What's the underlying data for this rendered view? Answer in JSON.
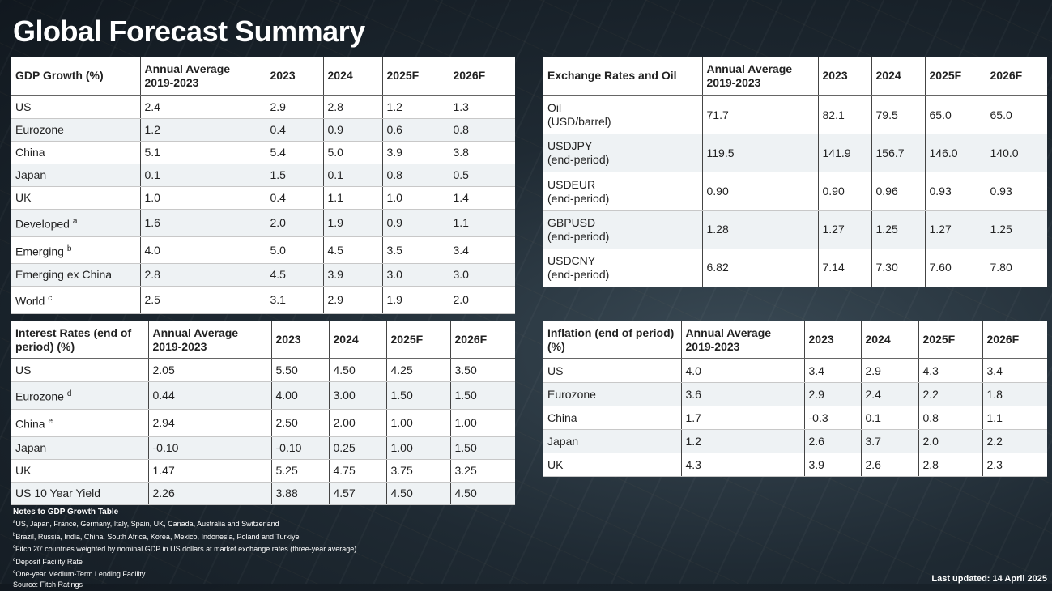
{
  "title": "Global Forecast Summary",
  "gdp": {
    "headers": [
      "GDP Growth (%)",
      "Annual Average 2019-2023",
      "2023",
      "2024",
      "2025F",
      "2026F"
    ],
    "rows": [
      {
        "label": "US",
        "sup": "",
        "values": [
          "2.4",
          "2.9",
          "2.8",
          "1.2",
          "1.3"
        ]
      },
      {
        "label": "Eurozone",
        "sup": "",
        "values": [
          "1.2",
          "0.4",
          "0.9",
          "0.6",
          "0.8"
        ]
      },
      {
        "label": "China",
        "sup": "",
        "values": [
          "5.1",
          "5.4",
          "5.0",
          "3.9",
          "3.8"
        ]
      },
      {
        "label": "Japan",
        "sup": "",
        "values": [
          "0.1",
          "1.5",
          "0.1",
          "0.8",
          "0.5"
        ]
      },
      {
        "label": "UK",
        "sup": "",
        "values": [
          "1.0",
          "0.4",
          "1.1",
          "1.0",
          "1.4"
        ]
      },
      {
        "label": "Developed",
        "sup": "a",
        "values": [
          "1.6",
          "2.0",
          "1.9",
          "0.9",
          "1.1"
        ]
      },
      {
        "label": "Emerging",
        "sup": "b",
        "values": [
          "4.0",
          "5.0",
          "4.5",
          "3.5",
          "3.4"
        ]
      },
      {
        "label": "Emerging ex China",
        "sup": "",
        "values": [
          "2.8",
          "4.5",
          "3.9",
          "3.0",
          "3.0"
        ]
      },
      {
        "label": "World",
        "sup": "c",
        "values": [
          "2.5",
          "3.1",
          "2.9",
          "1.9",
          "2.0"
        ]
      }
    ]
  },
  "rates": {
    "headers": [
      "Interest Rates (end of period) (%)",
      "Annual Average 2019-2023",
      "2023",
      "2024",
      "2025F",
      "2026F"
    ],
    "rows": [
      {
        "label": "US",
        "sup": "",
        "values": [
          "2.05",
          "5.50",
          "4.50",
          "4.25",
          "3.50"
        ]
      },
      {
        "label": "Eurozone",
        "sup": "d",
        "values": [
          "0.44",
          "4.00",
          "3.00",
          "1.50",
          "1.50"
        ]
      },
      {
        "label": "China",
        "sup": "e",
        "values": [
          "2.94",
          "2.50",
          "2.00",
          "1.00",
          "1.00"
        ]
      },
      {
        "label": "Japan",
        "sup": "",
        "values": [
          "-0.10",
          "-0.10",
          "0.25",
          "1.00",
          "1.50"
        ]
      },
      {
        "label": "UK",
        "sup": "",
        "values": [
          "1.47",
          "5.25",
          "4.75",
          "3.75",
          "3.25"
        ]
      },
      {
        "label": "US 10 Year Yield",
        "sup": "",
        "values": [
          "2.26",
          "3.88",
          "4.57",
          "4.50",
          "4.50"
        ]
      }
    ]
  },
  "fx": {
    "headers": [
      "Exchange Rates and Oil",
      "Annual Average 2019-2023",
      "2023",
      "2024",
      "2025F",
      "2026F"
    ],
    "rows": [
      {
        "label": "Oil",
        "sublabel": "(USD/barrel)",
        "values": [
          "71.7",
          "82.1",
          "79.5",
          "65.0",
          "65.0"
        ]
      },
      {
        "label": "USDJPY",
        "sublabel": "(end-period)",
        "values": [
          "119.5",
          "141.9",
          "156.7",
          "146.0",
          "140.0"
        ]
      },
      {
        "label": "USDEUR",
        "sublabel": "(end-period)",
        "values": [
          "0.90",
          "0.90",
          "0.96",
          "0.93",
          "0.93"
        ]
      },
      {
        "label": "GBPUSD",
        "sublabel": "(end-period)",
        "values": [
          "1.28",
          "1.27",
          "1.25",
          "1.27",
          "1.25"
        ]
      },
      {
        "label": "USDCNY",
        "sublabel": "(end-period)",
        "values": [
          "6.82",
          "7.14",
          "7.30",
          "7.60",
          "7.80"
        ]
      }
    ]
  },
  "inflation": {
    "headers": [
      "Inflation (end of period) (%)",
      "Annual Average 2019-2023",
      "2023",
      "2024",
      "2025F",
      "2026F"
    ],
    "rows": [
      {
        "label": "US",
        "values": [
          "4.0",
          "3.4",
          "2.9",
          "4.3",
          "3.4"
        ]
      },
      {
        "label": "Eurozone",
        "values": [
          "3.6",
          "2.9",
          "2.4",
          "2.2",
          "1.8"
        ]
      },
      {
        "label": "China",
        "values": [
          "1.7",
          "-0.3",
          "0.1",
          "0.8",
          "1.1"
        ]
      },
      {
        "label": "Japan",
        "values": [
          "1.2",
          "2.6",
          "3.7",
          "2.0",
          "2.2"
        ]
      },
      {
        "label": "UK",
        "values": [
          "4.3",
          "3.9",
          "2.6",
          "2.8",
          "2.3"
        ]
      }
    ]
  },
  "notes": {
    "heading": "Notes to GDP Growth Table",
    "items": [
      {
        "sup": "a",
        "text": "US, Japan, France, Germany, Italy, Spain, UK, Canada, Australia and Switzerland"
      },
      {
        "sup": "b",
        "text": "Brazil, Russia, India, China, South Africa, Korea, Mexico, Indonesia, Poland and Turkiye"
      },
      {
        "sup": "c",
        "text": "Fitch 20' countries weighted by nominal GDP in US dollars at market exchange rates (three-year average)"
      },
      {
        "sup": "d",
        "text": "Deposit Facility Rate"
      },
      {
        "sup": "e",
        "text": "One-year Medium-Term Lending Facility"
      }
    ],
    "source": "Source: Fitch Ratings"
  },
  "last_updated": "Last updated: 14 April 2025"
}
